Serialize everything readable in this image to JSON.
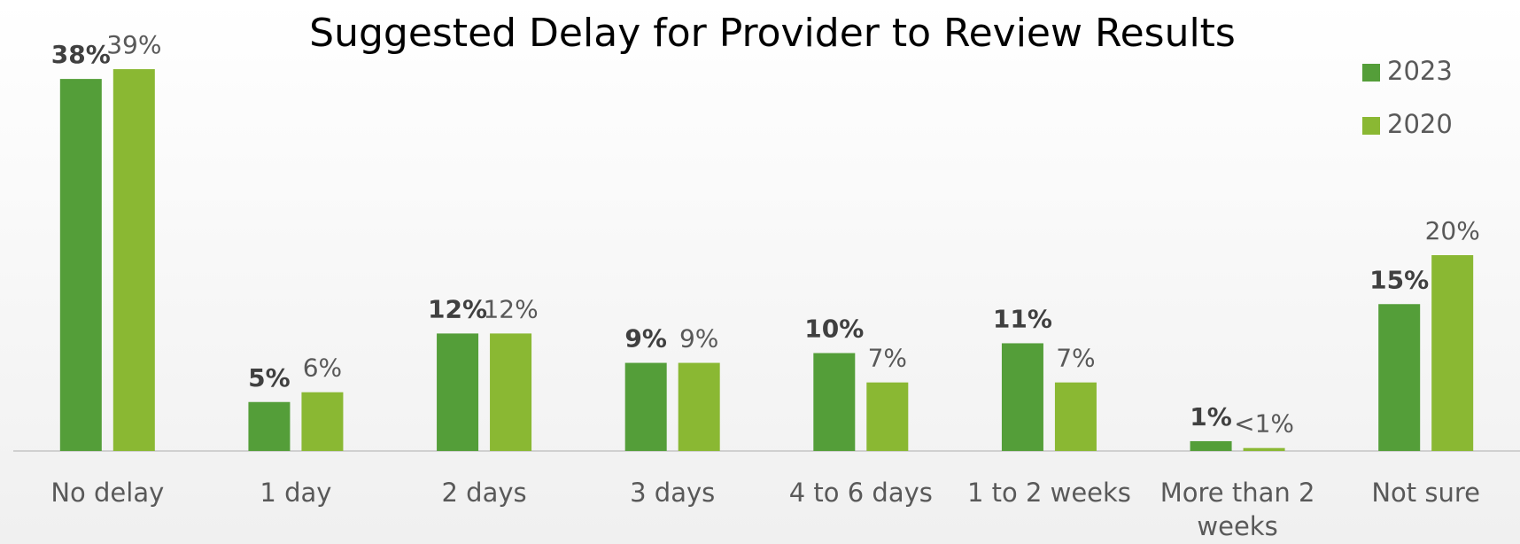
{
  "chart_data": {
    "type": "bar",
    "title": "Suggested Delay for Provider to Review Results",
    "categories": [
      "No delay",
      "1 day",
      "2 days",
      "3 days",
      "4 to 6 days",
      "1 to 2 weeks",
      "More than 2 weeks",
      "Not sure"
    ],
    "series": [
      {
        "name": "2023",
        "color": "#549e39",
        "values": [
          38,
          5,
          12,
          9,
          10,
          11,
          1,
          15
        ],
        "value_labels": [
          "38%",
          "5%",
          "12%",
          "9%",
          "10%",
          "11%",
          "1%",
          "15%"
        ]
      },
      {
        "name": "2020",
        "color": "#8ab833",
        "values": [
          39,
          6,
          12,
          9,
          7,
          7,
          0.3,
          20
        ],
        "value_labels": [
          "39%",
          "6%",
          "12%",
          "9%",
          "7%",
          "7%",
          "<1%",
          "20%"
        ]
      }
    ],
    "ylim": [
      0,
      40
    ],
    "legend": "top-right"
  }
}
